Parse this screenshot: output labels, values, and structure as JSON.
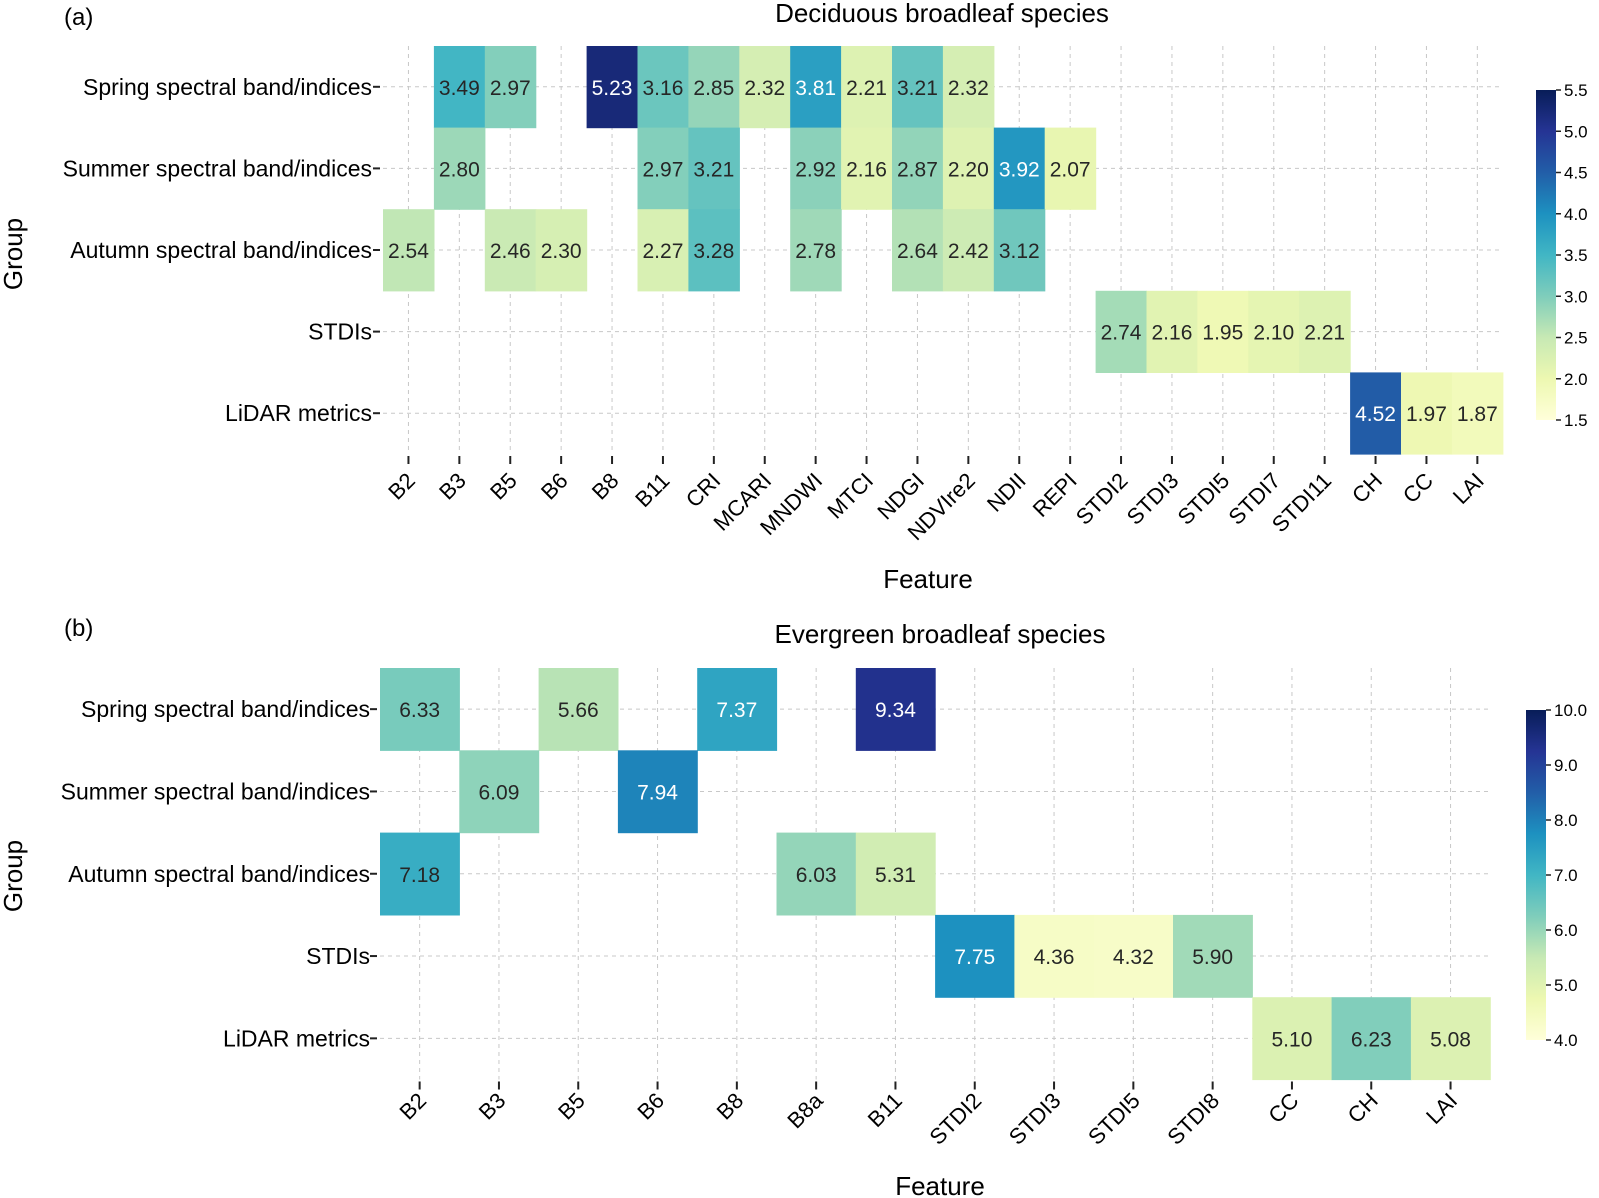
{
  "chart_data": [
    {
      "type": "heatmap",
      "panel": "(a)",
      "title": "Deciduous broadleaf species",
      "xlabel": "Feature",
      "ylabel": "Group",
      "rows": [
        "Spring spectral band/indices",
        "Summer spectral band/indices",
        "Autumn spectral band/indices",
        "STDIs",
        "LiDAR metrics"
      ],
      "columns": [
        "B2",
        "B3",
        "B5",
        "B6",
        "B8",
        "B11",
        "CRI",
        "MCARI",
        "MNDWI",
        "MTCI",
        "NDGI",
        "NDVIre2",
        "NDII",
        "REPI",
        "STDI2",
        "STDI3",
        "STDI5",
        "STDI7",
        "STDI11",
        "CH",
        "CC",
        "LAI"
      ],
      "values": [
        [
          null,
          3.49,
          2.97,
          null,
          5.23,
          3.16,
          2.85,
          2.32,
          3.81,
          2.21,
          3.21,
          2.32,
          null,
          null,
          null,
          null,
          null,
          null,
          null,
          null,
          null,
          null
        ],
        [
          null,
          2.8,
          null,
          null,
          null,
          2.97,
          3.21,
          null,
          2.92,
          2.16,
          2.87,
          2.2,
          3.92,
          2.07,
          null,
          null,
          null,
          null,
          null,
          null,
          null,
          null
        ],
        [
          2.54,
          null,
          2.46,
          2.3,
          null,
          2.27,
          3.28,
          null,
          2.78,
          null,
          2.64,
          2.42,
          3.12,
          null,
          null,
          null,
          null,
          null,
          null,
          null,
          null,
          null
        ],
        [
          null,
          null,
          null,
          null,
          null,
          null,
          null,
          null,
          null,
          null,
          null,
          null,
          null,
          null,
          2.74,
          2.16,
          1.95,
          2.1,
          2.21,
          null,
          null,
          null
        ],
        [
          null,
          null,
          null,
          null,
          null,
          null,
          null,
          null,
          null,
          null,
          null,
          null,
          null,
          null,
          null,
          null,
          null,
          null,
          null,
          4.52,
          1.97,
          1.87
        ]
      ],
      "value_labels": [
        [
          "",
          "3.49",
          "2.97",
          "",
          "5.23",
          "3.16",
          "2.85",
          "2.32",
          "3.81",
          "2.21",
          "3.21",
          "2.32",
          "",
          "",
          "",
          "",
          "",
          "",
          "",
          "",
          "",
          ""
        ],
        [
          "",
          "2.80",
          "",
          "",
          "",
          "2.97",
          "3.21",
          "",
          "2.92",
          "2.16",
          "2.87",
          "2.20",
          "3.92",
          "2.07",
          "",
          "",
          "",
          "",
          "",
          "",
          "",
          ""
        ],
        [
          "2.54",
          "",
          "2.46",
          "2.30",
          "",
          "2.27",
          "3.28",
          "",
          "2.78",
          "",
          "2.64",
          "2.42",
          "3.12",
          "",
          "",
          "",
          "",
          "",
          "",
          "",
          "",
          ""
        ],
        [
          "",
          "",
          "",
          "",
          "",
          "",
          "",
          "",
          "",
          "",
          "",
          "",
          "",
          "",
          "2.74",
          "2.16",
          "1.95",
          "2.10",
          "2.21",
          "",
          "",
          ""
        ],
        [
          "",
          "",
          "",
          "",
          "",
          "",
          "",
          "",
          "",
          "",
          "",
          "",
          "",
          "",
          "",
          "",
          "",
          "",
          "",
          "4.52",
          "1.97",
          "1.87"
        ]
      ],
      "colorbar": {
        "min": 1.5,
        "max": 5.5,
        "ticks": [
          1.5,
          2.0,
          2.5,
          3.0,
          3.5,
          4.0,
          4.5,
          5.0,
          5.5
        ],
        "tick_labels": [
          "1.5",
          "2.0",
          "2.5",
          "3.0",
          "3.5",
          "4.0",
          "4.5",
          "5.0",
          "5.5"
        ]
      },
      "colormap": "YlGnBu",
      "grid": true
    },
    {
      "type": "heatmap",
      "panel": "(b)",
      "title": "Evergreen broadleaf species",
      "xlabel": "Feature",
      "ylabel": "Group",
      "rows": [
        "Spring spectral band/indices",
        "Summer spectral band/indices",
        "Autumn spectral band/indices",
        "STDIs",
        "LiDAR metrics"
      ],
      "columns": [
        "B2",
        "B3",
        "B5",
        "B6",
        "B8",
        "B8a",
        "B11",
        "STDI2",
        "STDI3",
        "STDI5",
        "STDI8",
        "CC",
        "CH",
        "LAI"
      ],
      "values": [
        [
          6.33,
          null,
          5.66,
          null,
          7.37,
          null,
          9.34,
          null,
          null,
          null,
          null,
          null,
          null,
          null
        ],
        [
          null,
          6.09,
          null,
          7.94,
          null,
          null,
          null,
          null,
          null,
          null,
          null,
          null,
          null,
          null
        ],
        [
          7.18,
          null,
          null,
          null,
          null,
          6.03,
          5.31,
          null,
          null,
          null,
          null,
          null,
          null,
          null
        ],
        [
          null,
          null,
          null,
          null,
          null,
          null,
          null,
          7.75,
          4.36,
          4.32,
          5.9,
          null,
          null,
          null
        ],
        [
          null,
          null,
          null,
          null,
          null,
          null,
          null,
          null,
          null,
          null,
          null,
          5.1,
          6.23,
          5.08
        ]
      ],
      "value_labels": [
        [
          "6.33",
          "",
          "5.66",
          "",
          "7.37",
          "",
          "9.34",
          "",
          "",
          "",
          "",
          "",
          "",
          ""
        ],
        [
          "",
          "6.09",
          "",
          "7.94",
          "",
          "",
          "",
          "",
          "",
          "",
          "",
          "",
          "",
          ""
        ],
        [
          "7.18",
          "",
          "",
          "",
          "",
          "6.03",
          "5.31",
          "",
          "",
          "",
          "",
          "",
          "",
          ""
        ],
        [
          "",
          "",
          "",
          "",
          "",
          "",
          "",
          "7.75",
          "4.36",
          "4.32",
          "5.90",
          "",
          "",
          ""
        ],
        [
          "",
          "",
          "",
          "",
          "",
          "",
          "",
          "",
          "",
          "",
          "",
          "5.10",
          "6.23",
          "5.08"
        ]
      ],
      "colorbar": {
        "min": 4.0,
        "max": 10.0,
        "ticks": [
          4,
          5,
          6,
          7,
          8,
          9,
          10
        ],
        "tick_labels": [
          "4.0",
          "5.0",
          "6.0",
          "7.0",
          "8.0",
          "9.0",
          "10.0"
        ]
      },
      "colormap": "YlGnBu",
      "grid": true
    }
  ],
  "colors": {
    "colormap_stops": [
      "#ffffd9",
      "#edf8b1",
      "#c7e9b4",
      "#7fcdbb",
      "#41b6c4",
      "#1d91c0",
      "#225ea8",
      "#253494",
      "#081d58"
    ],
    "grid_line": "#c8c8c8",
    "axis_text": "#1a1a1a"
  }
}
